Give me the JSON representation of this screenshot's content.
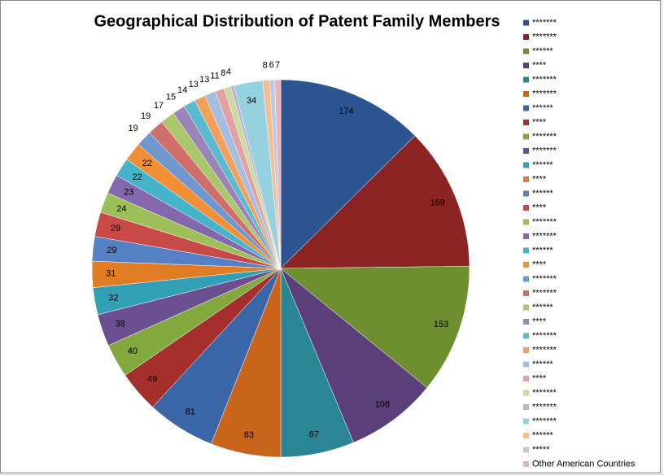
{
  "chart_data": {
    "type": "pie",
    "title": "Geographical Distribution of Patent Family Members",
    "categories": [
      "*******",
      "*******",
      "******",
      "****",
      "*******",
      "*******",
      "******",
      "****",
      "*******",
      "*******",
      "******",
      "****",
      "******",
      "****",
      "*******",
      "*******",
      "******",
      "****",
      "*******",
      "*******",
      "******",
      "****",
      "*******",
      "*******",
      "******",
      "****",
      "*******",
      "*******",
      "*******",
      "******",
      "*****",
      "Other American Countries"
    ],
    "values": [
      174,
      169,
      153,
      108,
      87,
      83,
      81,
      49,
      40,
      38,
      32,
      31,
      29,
      29,
      24,
      23,
      22,
      22,
      19,
      19,
      17,
      15,
      14,
      13,
      13,
      11,
      8,
      4,
      34,
      8,
      6,
      7
    ],
    "colors": [
      "#2c5490",
      "#8b2323",
      "#6e8f2f",
      "#5a3f7a",
      "#2a8595",
      "#c8651b",
      "#3a66a8",
      "#a52f2d",
      "#82a83e",
      "#6b4f90",
      "#31a0b4",
      "#e07d24",
      "#5581c4",
      "#c84a48",
      "#9cc057",
      "#8468ad",
      "#45b3c9",
      "#f08f35",
      "#7098cf",
      "#d06e6c",
      "#a9c76b",
      "#9b84b8",
      "#5cbad0",
      "#f5a05a",
      "#a5bde0",
      "#e0a3a2",
      "#c8dc9f",
      "#bdb0d1",
      "#95d1df",
      "#f8bd8d",
      "#b9cbe6",
      "#e8b4b8"
    ],
    "legend": "right"
  }
}
